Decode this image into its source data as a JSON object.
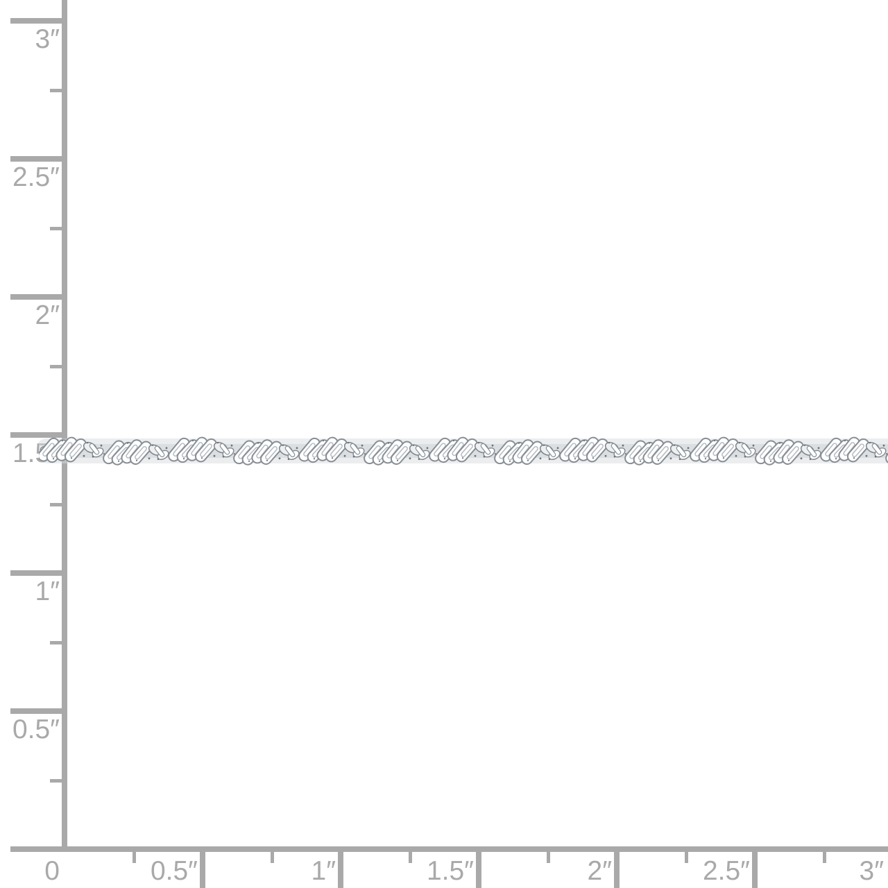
{
  "page": {
    "background_color": "#ffffff"
  },
  "ruler": {
    "color": "#a9a9a9",
    "units": "inches",
    "vertical_axis": {
      "major_labels": [
        {
          "value": 3,
          "label": "3″"
        },
        {
          "value": 2.5,
          "label": "2.5″"
        },
        {
          "value": 2,
          "label": "2″"
        },
        {
          "value": 1.5,
          "label": "1.5″"
        },
        {
          "value": 1,
          "label": "1″"
        },
        {
          "value": 0.5,
          "label": "0.5″"
        }
      ],
      "minor_tick_values": [
        2.75,
        2.25,
        1.75,
        1.25,
        0.75,
        0.25
      ]
    },
    "horizontal_axis": {
      "major_labels": [
        {
          "value": 0,
          "label": "0"
        },
        {
          "value": 0.5,
          "label": "0.5″"
        },
        {
          "value": 1,
          "label": "1″"
        },
        {
          "value": 1.5,
          "label": "1.5″"
        },
        {
          "value": 2,
          "label": "2″"
        },
        {
          "value": 2.5,
          "label": "2.5″"
        },
        {
          "value": 3,
          "label": "3″"
        }
      ],
      "minor_tick_values": [
        0.25,
        0.75,
        1.25,
        1.75,
        2.25,
        2.75
      ]
    }
  },
  "product": {
    "kind": "twisted singapore-style chain",
    "appearance": "polished white-metal chain lying horizontally across the frame at the 1.5-inch line, running off the right edge",
    "chain_row_inches": 1.5,
    "colors": {
      "metal_highlight": "#ffffff",
      "metal_outline": "#878e95",
      "metal_shadow": "#6d747b",
      "soft_shadow": "#d8dbde"
    }
  }
}
